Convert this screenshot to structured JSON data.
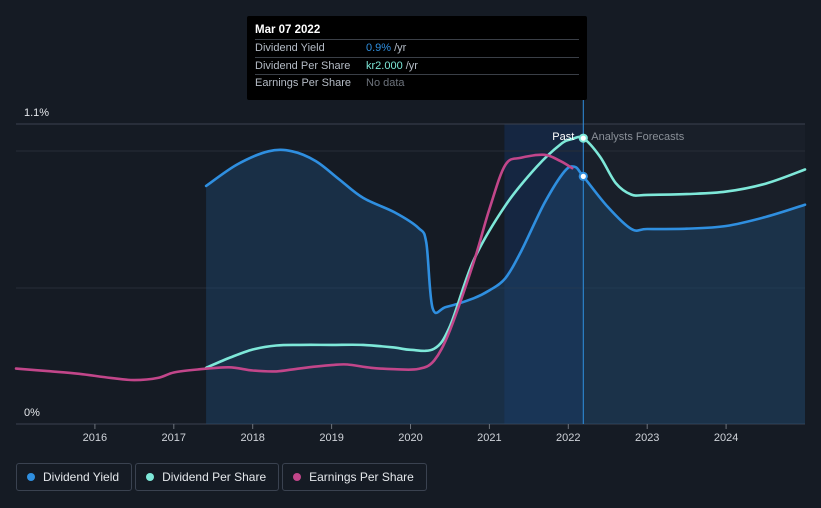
{
  "chart_data": {
    "type": "line",
    "x_range": [
      2015.0,
      2025.0
    ],
    "y_range": [
      0,
      1.1
    ],
    "y_labels": [
      {
        "text": "1.1%",
        "value": 1.1
      },
      {
        "text": "0%",
        "value": 0
      }
    ],
    "x_ticks": [
      2016,
      2017,
      2018,
      2019,
      2020,
      2021,
      2022,
      2023,
      2024
    ],
    "past_label": "Past",
    "forecast_label": "Analysts Forecasts",
    "forecast_start": 2022.19,
    "highlight_start": 2021.19,
    "series": [
      {
        "name": "Dividend Yield",
        "color": "#2f8fe0",
        "area": true,
        "points": [
          [
            2017.41,
            0.873
          ],
          [
            2017.8,
            0.951
          ],
          [
            2018.2,
            1.0
          ],
          [
            2018.5,
            1.0
          ],
          [
            2018.8,
            0.964
          ],
          [
            2019.1,
            0.896
          ],
          [
            2019.4,
            0.829
          ],
          [
            2019.8,
            0.776
          ],
          [
            2020.1,
            0.719
          ],
          [
            2020.2,
            0.665
          ],
          [
            2020.28,
            0.425
          ],
          [
            2020.45,
            0.429
          ],
          [
            2020.8,
            0.461
          ],
          [
            2021.0,
            0.49
          ],
          [
            2021.2,
            0.534
          ],
          [
            2021.4,
            0.632
          ],
          [
            2021.7,
            0.811
          ],
          [
            2021.95,
            0.926
          ],
          [
            2022.08,
            0.943
          ],
          [
            2022.19,
            0.908
          ],
          [
            2022.5,
            0.796
          ],
          [
            2022.8,
            0.715
          ],
          [
            2023.0,
            0.715
          ],
          [
            2023.5,
            0.716
          ],
          [
            2024.0,
            0.726
          ],
          [
            2024.5,
            0.759
          ],
          [
            2025.0,
            0.804
          ]
        ]
      },
      {
        "name": "Dividend Per Share",
        "color": "#7ee8d9",
        "area": false,
        "points": [
          [
            2017.41,
            0.206
          ],
          [
            2017.7,
            0.242
          ],
          [
            2018.0,
            0.273
          ],
          [
            2018.3,
            0.288
          ],
          [
            2018.6,
            0.29
          ],
          [
            2019.0,
            0.29
          ],
          [
            2019.4,
            0.29
          ],
          [
            2019.8,
            0.28
          ],
          [
            2020.0,
            0.272
          ],
          [
            2020.3,
            0.276
          ],
          [
            2020.5,
            0.359
          ],
          [
            2020.8,
            0.6
          ],
          [
            2021.2,
            0.8
          ],
          [
            2021.6,
            0.943
          ],
          [
            2021.9,
            1.025
          ],
          [
            2022.05,
            1.045
          ],
          [
            2022.19,
            1.048
          ],
          [
            2022.4,
            0.981
          ],
          [
            2022.6,
            0.884
          ],
          [
            2022.8,
            0.841
          ],
          [
            2023.0,
            0.84
          ],
          [
            2023.5,
            0.843
          ],
          [
            2024.0,
            0.852
          ],
          [
            2024.5,
            0.881
          ],
          [
            2025.0,
            0.933
          ]
        ]
      },
      {
        "name": "Earnings Per Share",
        "color": "#c2468a",
        "area": false,
        "points": [
          [
            2015.0,
            0.203
          ],
          [
            2015.4,
            0.194
          ],
          [
            2015.8,
            0.184
          ],
          [
            2016.2,
            0.169
          ],
          [
            2016.5,
            0.161
          ],
          [
            2016.8,
            0.169
          ],
          [
            2017.0,
            0.189
          ],
          [
            2017.3,
            0.2
          ],
          [
            2017.7,
            0.208
          ],
          [
            2018.0,
            0.196
          ],
          [
            2018.3,
            0.193
          ],
          [
            2018.6,
            0.204
          ],
          [
            2019.0,
            0.216
          ],
          [
            2019.2,
            0.218
          ],
          [
            2019.5,
            0.206
          ],
          [
            2019.8,
            0.201
          ],
          [
            2020.1,
            0.202
          ],
          [
            2020.3,
            0.233
          ],
          [
            2020.5,
            0.344
          ],
          [
            2020.8,
            0.592
          ],
          [
            2021.0,
            0.788
          ],
          [
            2021.2,
            0.949
          ],
          [
            2021.4,
            0.976
          ],
          [
            2021.7,
            0.987
          ],
          [
            2021.9,
            0.964
          ],
          [
            2022.05,
            0.938
          ]
        ]
      }
    ],
    "markers": [
      {
        "series": "Dividend Per Share",
        "x": 2022.19,
        "y": 1.048
      },
      {
        "series": "Dividend Yield",
        "x": 2022.19,
        "y": 0.908
      }
    ]
  },
  "tooltip": {
    "date": "Mar 07 2022",
    "rows": [
      {
        "name": "Dividend Yield",
        "value": "0.9%",
        "unit": "/yr",
        "color": "#2f8fe0"
      },
      {
        "name": "Dividend Per Share",
        "value": "kr2.000",
        "unit": "/yr",
        "color": "#7ee8d9"
      },
      {
        "name": "Earnings Per Share",
        "value": "No data",
        "unit": "",
        "color": "#6d737c"
      }
    ]
  },
  "legend": [
    {
      "label": "Dividend Yield",
      "color": "#2f8fe0"
    },
    {
      "label": "Dividend Per Share",
      "color": "#7ee8d9"
    },
    {
      "label": "Earnings Per Share",
      "color": "#c2468a"
    }
  ]
}
